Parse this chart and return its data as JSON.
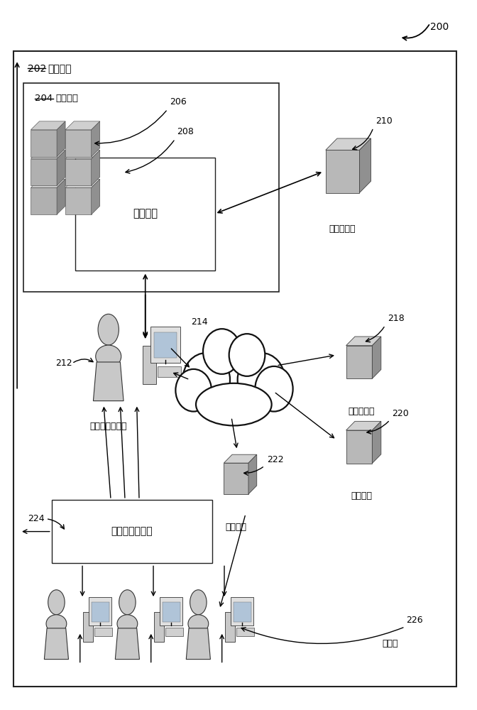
{
  "fig_width": 6.72,
  "fig_height": 10.0,
  "bg_color": "#ffffff",
  "label_200": "200",
  "label_202": "202",
  "label_204": "204",
  "text_datacenter": "数据中心",
  "text_commservice": "通信服务",
  "text_commapp": "通信应用",
  "text_storage": "存储服务器",
  "text_user": "进行发送的用户",
  "text_netdrive": "网络驱动器",
  "text_profnet": "职业网络",
  "text_socialnet": "社交网络",
  "text_commwithatt": "具有附件的通信",
  "text_receiver": "接收者"
}
